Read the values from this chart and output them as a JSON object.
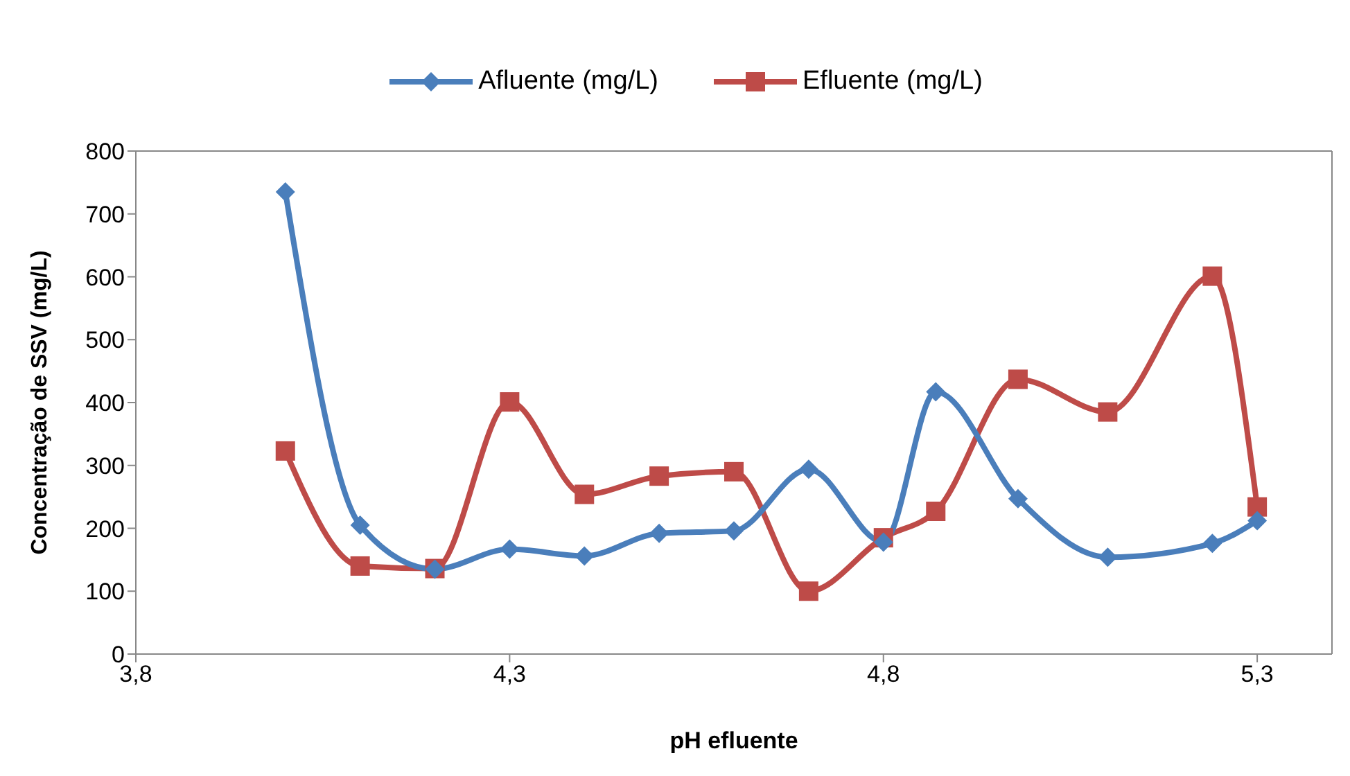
{
  "chart_data": {
    "type": "line",
    "xlabel": "pH efluente",
    "ylabel": "Concentração de SSV (mg/L)",
    "xlim": [
      3.8,
      5.4
    ],
    "xticks": [
      {
        "value": 3.8,
        "label": "3,8"
      },
      {
        "value": 4.3,
        "label": "4,3"
      },
      {
        "value": 4.8,
        "label": "4,8"
      },
      {
        "value": 5.3,
        "label": "5,3"
      }
    ],
    "ylim": [
      0,
      800
    ],
    "yticks": [
      0,
      100,
      200,
      300,
      400,
      500,
      600,
      700,
      800
    ],
    "grid": false,
    "legend": "top",
    "x": [
      4.0,
      4.1,
      4.2,
      4.3,
      4.4,
      4.5,
      4.6,
      4.7,
      4.8,
      4.87,
      4.98,
      5.1,
      5.24,
      5.3
    ],
    "series": [
      {
        "name": "Afluente (mg/L)",
        "color": "#4a7ebb",
        "marker": "diamond",
        "values": [
          735,
          205,
          135,
          167,
          156,
          192,
          196,
          294,
          178,
          417,
          247,
          154,
          176,
          212
        ]
      },
      {
        "name": "Efluente (mg/L)",
        "color": "#be4b48",
        "marker": "square",
        "values": [
          323,
          140,
          136,
          401,
          254,
          283,
          290,
          100,
          185,
          227,
          437,
          385,
          601,
          234
        ]
      }
    ]
  }
}
